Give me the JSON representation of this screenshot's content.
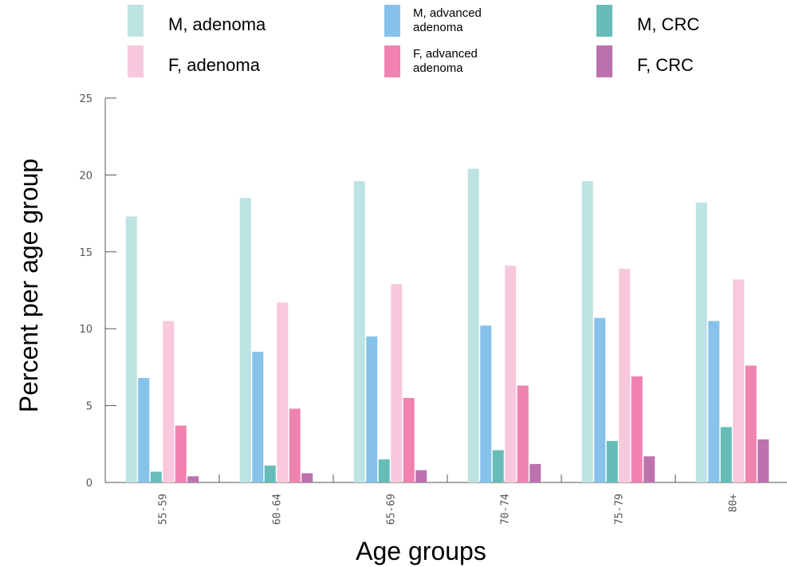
{
  "chart_data": {
    "type": "bar",
    "xlabel": "Age groups",
    "ylabel": "Percent per age  group",
    "ylim": [
      0,
      25
    ],
    "yticks": [
      0,
      5,
      10,
      15,
      20,
      25
    ],
    "categories": [
      "55-59",
      "60-64",
      "65-69",
      "70-74",
      "75-79",
      "80+"
    ],
    "series": [
      {
        "name": "M, adenoma",
        "color": "#bde3e3",
        "values": [
          17.3,
          18.5,
          19.6,
          20.4,
          19.6,
          18.2
        ]
      },
      {
        "name": "M, advanced adenoma",
        "color": "#86c2ea",
        "values": [
          6.8,
          8.5,
          9.5,
          10.2,
          10.7,
          10.5
        ]
      },
      {
        "name": "M, CRC",
        "color": "#67bcb8",
        "values": [
          0.7,
          1.1,
          1.5,
          2.1,
          2.7,
          3.6
        ]
      },
      {
        "name": "F, adenoma",
        "color": "#f8c8dc",
        "values": [
          10.5,
          11.7,
          12.9,
          14.1,
          13.9,
          13.2
        ]
      },
      {
        "name": "F, advanced adenoma",
        "color": "#ef82ae",
        "values": [
          3.7,
          4.8,
          5.5,
          6.3,
          6.9,
          7.6
        ]
      },
      {
        "name": "F, CRC",
        "color": "#bb72ae",
        "values": [
          0.4,
          0.6,
          0.8,
          1.2,
          1.7,
          2.8
        ]
      }
    ],
    "legend_position": "top",
    "grid": false
  }
}
